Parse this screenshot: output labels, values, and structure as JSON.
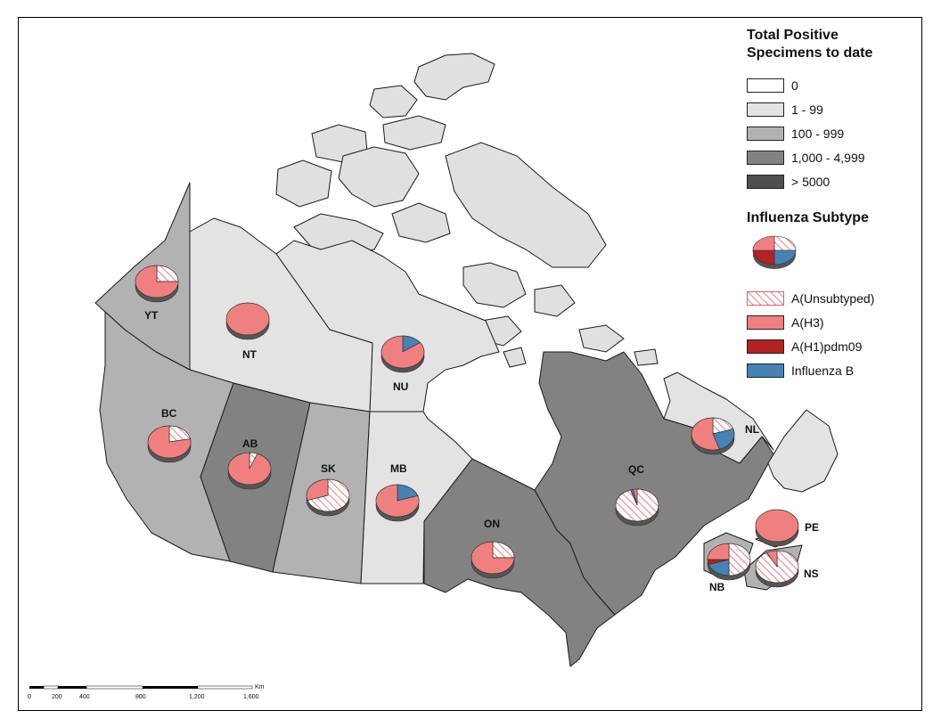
{
  "legend": {
    "positive_title_line1": "Total Positive",
    "positive_title_line2": "Specimens to date",
    "classes": [
      {
        "label": "0",
        "color": "#ffffff"
      },
      {
        "label": "1 - 99",
        "color": "#e3e3e3"
      },
      {
        "label": "100 - 999",
        "color": "#b2b2b2"
      },
      {
        "label": "1,000 - 4,999",
        "color": "#828282"
      },
      {
        "label": "> 5000",
        "color": "#4e4e4e"
      }
    ],
    "subtype_title": "Influenza Subtype",
    "subtypes": [
      {
        "label": "A(Unsubtyped)",
        "color": "#ffffff",
        "pattern": "hatch"
      },
      {
        "label": "A(H3)",
        "color": "#f08080"
      },
      {
        "label": "A(H1)pdm09",
        "color": "#b22222"
      },
      {
        "label": "Influenza B",
        "color": "#4682b4"
      }
    ]
  },
  "provinces": [
    {
      "code": "YT",
      "class": "100 - 999",
      "color": "#b2b2b2"
    },
    {
      "code": "NT",
      "class": "1 - 99",
      "color": "#e3e3e3"
    },
    {
      "code": "NU",
      "class": "1 - 99",
      "color": "#e3e3e3"
    },
    {
      "code": "BC",
      "class": "100 - 999",
      "color": "#b2b2b2"
    },
    {
      "code": "AB",
      "class": "1,000 - 4,999",
      "color": "#828282"
    },
    {
      "code": "SK",
      "class": "100 - 999",
      "color": "#b2b2b2"
    },
    {
      "code": "MB",
      "class": "1 - 99",
      "color": "#e3e3e3"
    },
    {
      "code": "ON",
      "class": "1,000 - 4,999",
      "color": "#828282"
    },
    {
      "code": "QC",
      "class": "1,000 - 4,999",
      "color": "#828282"
    },
    {
      "code": "NL",
      "class": "1 - 99",
      "color": "#e3e3e3"
    },
    {
      "code": "NB",
      "class": "100 - 999",
      "color": "#b2b2b2"
    },
    {
      "code": "NS",
      "class": "100 - 999",
      "color": "#b2b2b2"
    },
    {
      "code": "PE",
      "class": "1 - 99",
      "color": "#e3e3e3"
    }
  ],
  "pies": [
    {
      "code": "YT",
      "shares": {
        "unsub": 0.25,
        "h3": 0.75,
        "h1": 0,
        "b": 0
      }
    },
    {
      "code": "NT",
      "shares": {
        "unsub": 0,
        "h3": 1.0,
        "h1": 0,
        "b": 0
      }
    },
    {
      "code": "NU",
      "shares": {
        "unsub": 0,
        "h3": 0.85,
        "h1": 0,
        "b": 0.15
      }
    },
    {
      "code": "BC",
      "shares": {
        "unsub": 0.22,
        "h3": 0.78,
        "h1": 0,
        "b": 0
      }
    },
    {
      "code": "AB",
      "shares": {
        "unsub": 0.06,
        "h3": 0.94,
        "h1": 0,
        "b": 0
      }
    },
    {
      "code": "SK",
      "shares": {
        "unsub": 0.7,
        "h3": 0.3,
        "h1": 0,
        "b": 0
      }
    },
    {
      "code": "MB",
      "shares": {
        "unsub": 0,
        "h3": 0.8,
        "h1": 0,
        "b": 0.2
      }
    },
    {
      "code": "ON",
      "shares": {
        "unsub": 0.25,
        "h3": 0.75,
        "h1": 0,
        "b": 0
      }
    },
    {
      "code": "QC",
      "shares": {
        "unsub": 0.95,
        "h3": 0.03,
        "h1": 0,
        "b": 0.02
      }
    },
    {
      "code": "NL",
      "shares": {
        "unsub": 0.2,
        "h3": 0.55,
        "h1": 0,
        "b": 0.25
      }
    },
    {
      "code": "PE",
      "shares": {
        "unsub": 0,
        "h3": 1.0,
        "h1": 0,
        "b": 0
      }
    },
    {
      "code": "NB",
      "shares": {
        "unsub": 0.5,
        "h3": 0.25,
        "h1": 0.05,
        "b": 0.2
      }
    },
    {
      "code": "NS",
      "shares": {
        "unsub": 0.92,
        "h3": 0.08,
        "h1": 0,
        "b": 0
      }
    }
  ],
  "scalebar": {
    "unit": "Km",
    "ticks": [
      "0",
      "200",
      "400",
      "800",
      "1,200",
      "1,600"
    ]
  }
}
